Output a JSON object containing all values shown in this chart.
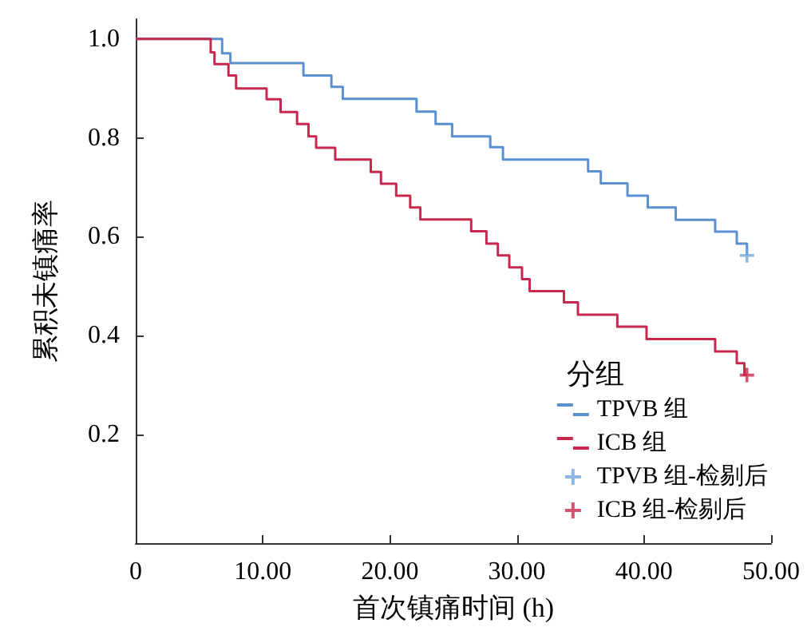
{
  "chart_data": {
    "type": "step",
    "xlabel": "首次镇痛时间 (h)",
    "ylabel": "累积未镇痛率",
    "legend_title": "分组",
    "legend": "bottom right",
    "grid": false,
    "xlim": [
      0,
      50
    ],
    "xticks": [
      0,
      {
        "value": 10,
        "label": "10.00"
      },
      {
        "value": 20,
        "label": "20.00"
      },
      {
        "value": 30,
        "label": "30.00"
      },
      {
        "value": 40,
        "label": "40.00"
      },
      {
        "value": 50,
        "label": "50.00"
      }
    ],
    "ylim": [
      -0.02,
      1.04
    ],
    "yticks": [
      {
        "value": 0.2,
        "label": "0.2"
      },
      {
        "value": 0.4,
        "label": "0.4"
      },
      {
        "value": 0.6,
        "label": "0.6"
      },
      {
        "value": 0.8,
        "label": "0.8"
      },
      {
        "value": 1,
        "label": "1.0"
      }
    ],
    "series": [
      {
        "name": "TPVB 组",
        "type": "step",
        "color": "#5b8fd0",
        "marker": "none",
        "x": [
          0,
          6.8,
          7.45,
          13.2,
          15.4,
          16.3,
          22.1,
          23.6,
          24.9,
          27.9,
          28.9,
          35.6,
          36.6,
          38.7,
          40.3,
          42.5,
          45.6,
          47.3,
          48.1
        ],
        "values": [
          1,
          0.971,
          0.951,
          0.926,
          0.903,
          0.879,
          0.853,
          0.828,
          0.803,
          0.781,
          0.756,
          0.732,
          0.708,
          0.683,
          0.659,
          0.634,
          0.61,
          0.586,
          0.562
        ]
      },
      {
        "name": "ICB 组",
        "type": "step",
        "color": "#c8284e",
        "marker": "none",
        "x": [
          0,
          5.9,
          6.2,
          7.3,
          7.9,
          10.3,
          11.4,
          12.7,
          13.6,
          14.2,
          15.7,
          18.5,
          19.3,
          20.5,
          21.6,
          22.4,
          26.4,
          27.6,
          28.5,
          29.4,
          30.4,
          31,
          33.7,
          34.8,
          37.9,
          40.2,
          45.6,
          47.3,
          47.9,
          48.1
        ],
        "values": [
          1,
          0.973,
          0.949,
          0.926,
          0.9,
          0.878,
          0.852,
          0.828,
          0.803,
          0.78,
          0.756,
          0.731,
          0.707,
          0.683,
          0.659,
          0.635,
          0.611,
          0.586,
          0.562,
          0.538,
          0.514,
          0.49,
          0.467,
          0.442,
          0.418,
          0.393,
          0.368,
          0.344,
          0.32,
          0.32
        ]
      },
      {
        "name": "TPVB 组-检剔后",
        "type": "scatter",
        "color": "#6fa6e0",
        "marker": "cross",
        "x": [
          48.1
        ],
        "values": [
          0.562
        ]
      },
      {
        "name": "ICB 组-检剔后",
        "type": "scatter",
        "color": "#c8284e",
        "marker": "cross",
        "x": [
          48.1
        ],
        "values": [
          0.32
        ]
      }
    ]
  }
}
